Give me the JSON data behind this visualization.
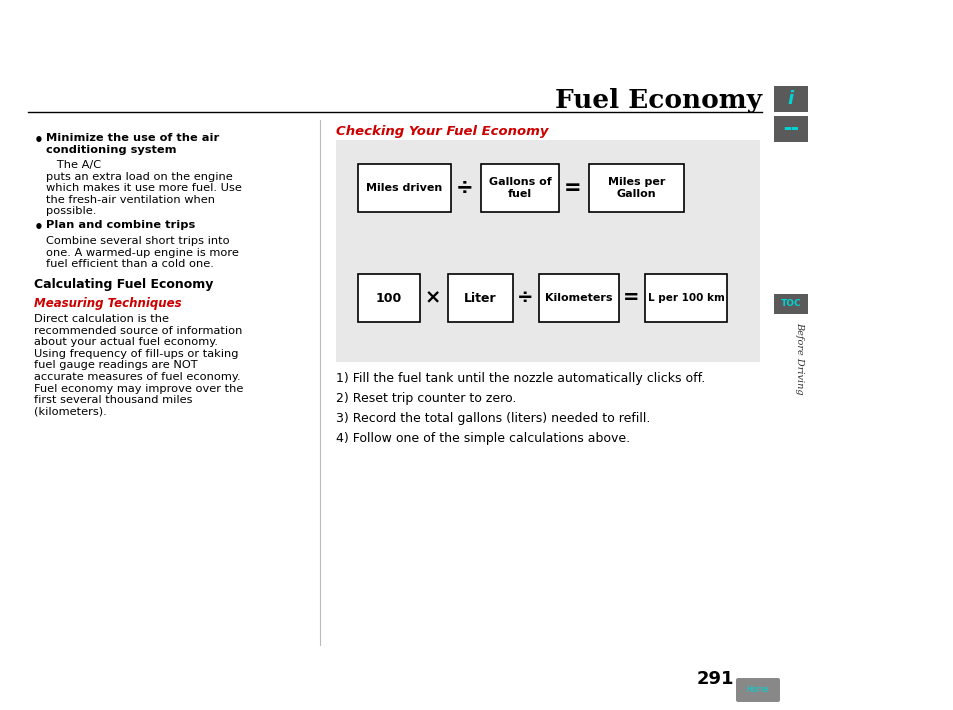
{
  "title": "Fuel Economy",
  "page_num": "291",
  "bg_color": "#ffffff",
  "gray_box_color": "#e8e8e8",
  "sidebar_dark": "#5a5a5a",
  "cyan_color": "#00d4d4",
  "red_color": "#cc0000",
  "section_heading": "Checking Your Fuel Economy",
  "div_op": "÷",
  "mul_op": "×",
  "eq_op": "=",
  "bullet": "•",
  "steps": [
    "1) Fill the fuel tank until the nozzle automatically clicks off.",
    "2) Reset trip counter to zero.",
    "3) Record the total gallons (liters) needed to refill.",
    "4) Follow one of the simple calculations above."
  ]
}
